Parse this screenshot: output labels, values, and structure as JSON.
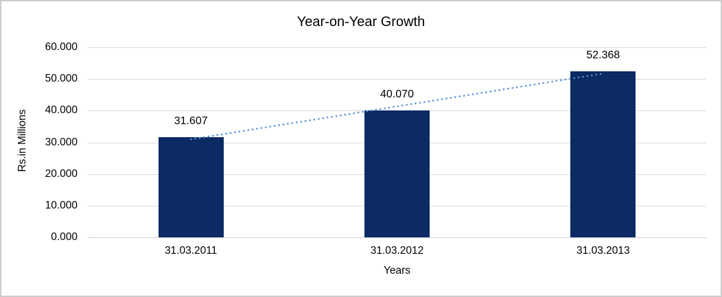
{
  "chart_data": {
    "type": "bar",
    "title": "Year-on-Year Growth",
    "xlabel": "Years",
    "ylabel": "Rs.in Millions",
    "categories": [
      "31.03.2011",
      "31.03.2012",
      "31.03.2013"
    ],
    "values": [
      31.607,
      40.07,
      52.368
    ],
    "data_labels": [
      "31.607",
      "40.070",
      "52.368"
    ],
    "ylim": [
      0,
      60
    ],
    "ytick_values": [
      0,
      10,
      20,
      30,
      40,
      50,
      60
    ],
    "ytick_labels": [
      "0.000",
      "10.000",
      "20.000",
      "30.000",
      "40.000",
      "50.000",
      "60.000"
    ],
    "grid": true,
    "legend_position": "none",
    "trendline": {
      "type": "linear",
      "style": "dotted"
    },
    "colors": {
      "bar": "#0c2a63",
      "trendline": "#5193d9",
      "gridline": "#d9d9d9",
      "axis_line": "#d3d3d3",
      "text": "#000000",
      "frame_border": "#cccccc",
      "background": "#ffffff"
    }
  }
}
